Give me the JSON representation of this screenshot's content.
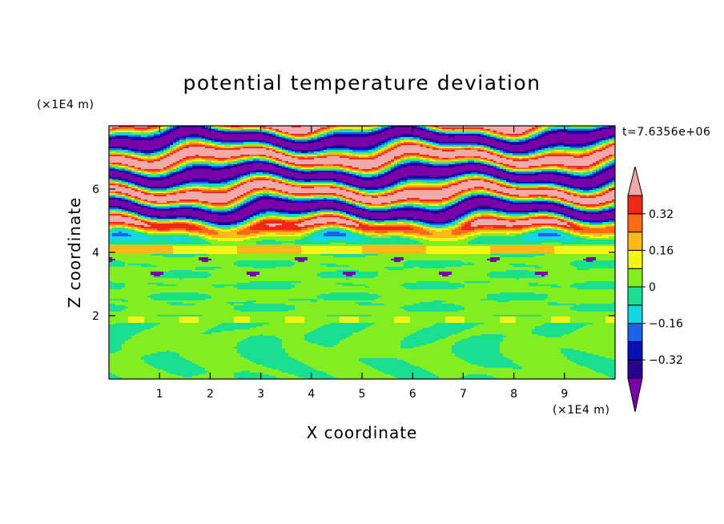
{
  "chart_data": {
    "type": "heatmap",
    "title": "potential temperature deviation",
    "xlabel": "X coordinate",
    "ylabel": "Z coordinate",
    "x_unit_label": "(×1E4 m)",
    "y_unit_label": "(×1E4 m)",
    "time_label": "t=7.6356e+06",
    "xlim": [
      0,
      10
    ],
    "ylim": [
      0,
      8
    ],
    "x_ticks": [
      "1",
      "2",
      "3",
      "4",
      "5",
      "6",
      "7",
      "8",
      "9"
    ],
    "y_ticks": [
      "2",
      "4",
      "6"
    ],
    "colorbar": {
      "levels": [
        -0.4,
        -0.32,
        -0.24,
        -0.16,
        -0.08,
        0,
        0.08,
        0.16,
        0.24,
        0.32,
        0.4
      ],
      "labels": [
        "0.32",
        "0.16",
        "0",
        "-0.16",
        "-0.32"
      ],
      "colors": [
        "#7a00a8",
        "#2a0090",
        "#0a10b4",
        "#1c64e6",
        "#14d6e4",
        "#18e090",
        "#82ee20",
        "#f4f418",
        "#ffb81a",
        "#ff6a12",
        "#f02818",
        "#f4a8a8"
      ]
    },
    "field_regions": [
      {
        "z": [
          0,
          2
        ],
        "description": "mostly 0 to -0.08 with green-cyan eddies"
      },
      {
        "z": [
          2,
          4
        ],
        "description": "near 0, weak banding"
      },
      {
        "z": [
          4,
          8
        ],
        "description": "alternating strong positive and negative layers, -0.4 to 0.4"
      }
    ]
  }
}
